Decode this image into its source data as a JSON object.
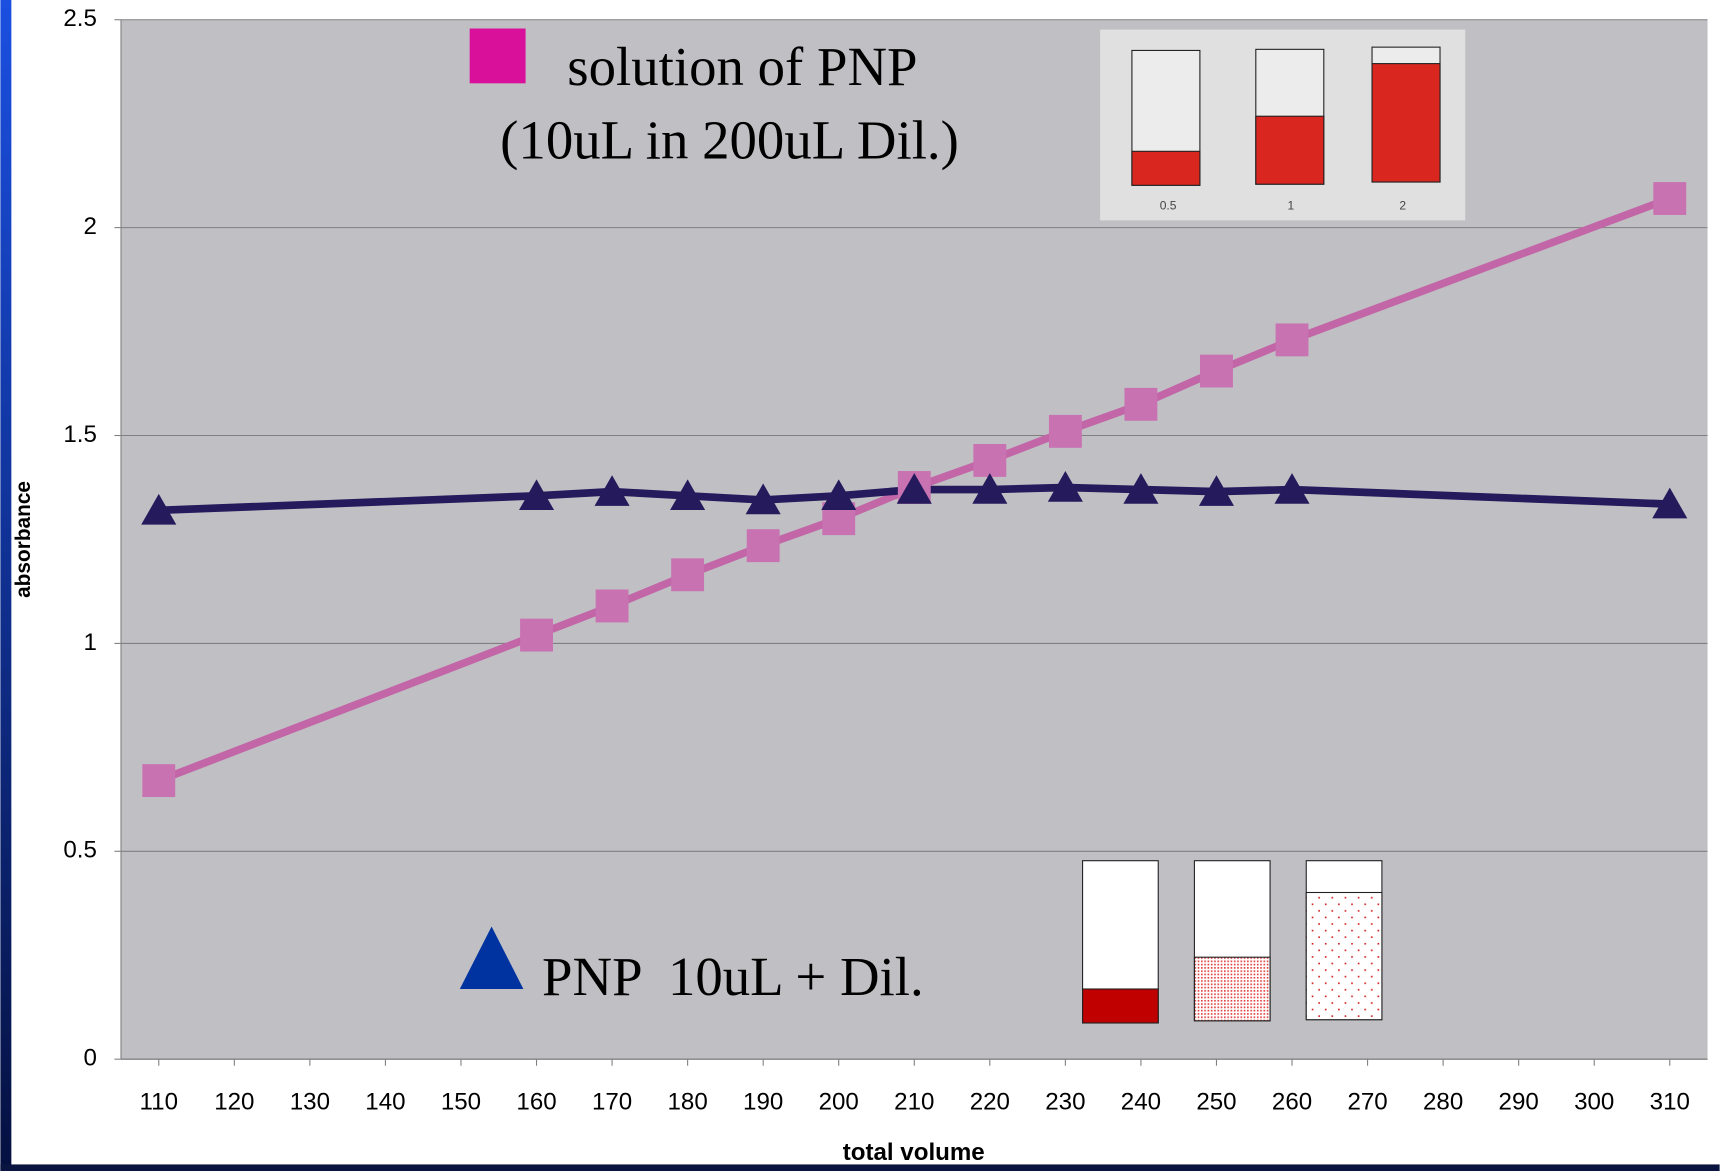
{
  "chart_data": {
    "type": "line",
    "y_label": "absorbance",
    "x_label": "total volume",
    "x": [
      110,
      160,
      170,
      180,
      190,
      200,
      210,
      220,
      230,
      240,
      250,
      260,
      310
    ],
    "series": [
      {
        "name": "solution of PNP",
        "color": "#c266a8",
        "marker": "square",
        "values": [
          0.67,
          1.02,
          1.09,
          1.165,
          1.235,
          1.3,
          1.375,
          1.44,
          1.51,
          1.575,
          1.655,
          1.73,
          2.07
        ]
      },
      {
        "name": "PNP  10uL + Dil.",
        "color": "#241a5c",
        "marker": "triangle",
        "values": [
          1.32,
          1.355,
          1.365,
          1.355,
          1.345,
          1.355,
          1.37,
          1.37,
          1.375,
          1.37,
          1.365,
          1.37,
          1.335
        ]
      }
    ],
    "annotation": "(10uL in 200uL Dil.)",
    "inset_labels": [
      "0.5",
      "1",
      "2"
    ],
    "xlim": [
      105,
      315
    ],
    "xticks": [
      110,
      120,
      130,
      140,
      150,
      160,
      170,
      180,
      190,
      200,
      210,
      220,
      230,
      240,
      250,
      260,
      270,
      280,
      290,
      300,
      310
    ],
    "ylim": [
      0,
      2.5
    ],
    "yticks": [
      0,
      0.5,
      1,
      1.5,
      2,
      2.5
    ],
    "grid": true
  }
}
